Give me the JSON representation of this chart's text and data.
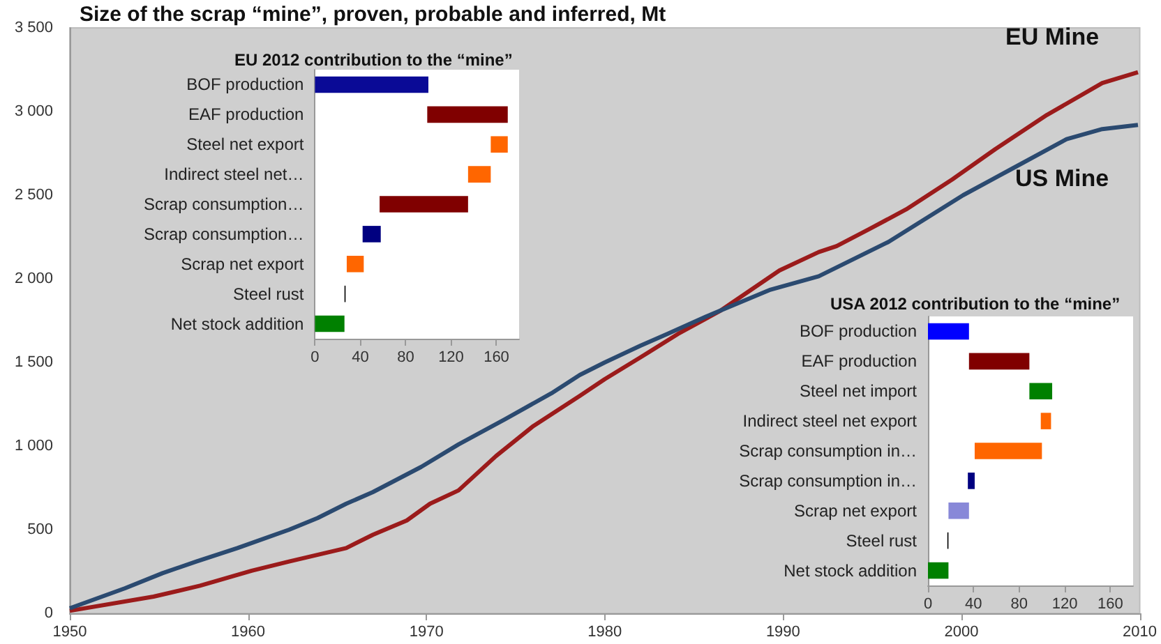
{
  "chart_data": [
    {
      "type": "line",
      "title": "Size of the scrap “mine”, proven, probable and inferred, Mt",
      "xlim": [
        1950,
        2010
      ],
      "xticks": [
        1950,
        1960,
        1970,
        1980,
        1990,
        2000,
        2010
      ],
      "ylim": [
        0,
        3500
      ],
      "yticks": [
        0,
        500,
        {
          "value": 1000,
          "label": "1 000"
        },
        {
          "value": 1500,
          "label": "1 500"
        },
        {
          "value": 2000,
          "label": "2 000"
        },
        {
          "value": 2500,
          "label": "2 500"
        },
        {
          "value": 3000,
          "label": "3 000"
        },
        {
          "value": 3500,
          "label": "3 500"
        }
      ],
      "legend": false,
      "marker": "none",
      "series": [
        {
          "name": "EU Mine",
          "color": "#9b1b1b",
          "x": [
            1950,
            1954.7,
            1957.3,
            1960.2,
            1962.3,
            1965.5,
            1967,
            1968.9,
            1970.2,
            1971.8,
            1973.9,
            1976,
            1978.6,
            1980,
            1982,
            1984.1,
            1986.5,
            1989.8,
            1992,
            1993,
            1994.8,
            1996.9,
            1999.5,
            2001.9,
            2004.8,
            2007.9,
            2009.9
          ],
          "values": [
            15,
            100,
            165,
            255,
            310,
            390,
            470,
            555,
            655,
            735,
            940,
            1120,
            1300,
            1400,
            1530,
            1670,
            1810,
            2050,
            2160,
            2195,
            2295,
            2415,
            2595,
            2775,
            2980,
            3170,
            3235
          ]
        },
        {
          "name": "US Mine",
          "color": "#2b4a70",
          "x": [
            1950,
            1953.1,
            1955.2,
            1957.1,
            1959.4,
            1962.3,
            1963.9,
            1965.5,
            1967,
            1969.7,
            1971.8,
            1974.4,
            1977,
            1978.6,
            1980,
            1982,
            1983.5,
            1985.7,
            1989.3,
            1992,
            1995.9,
            2000.1,
            2002.7,
            2005.9,
            2007.9,
            2009.9
          ],
          "values": [
            30,
            150,
            240,
            310,
            390,
            500,
            570,
            655,
            725,
            875,
            1010,
            1160,
            1315,
            1425,
            1500,
            1600,
            1670,
            1775,
            1935,
            2015,
            2220,
            2500,
            2650,
            2835,
            2895,
            2920
          ]
        }
      ]
    },
    {
      "type": "bar",
      "orientation": "horizontal",
      "title": "EU 2012 contribution to the “mine”",
      "categories": [
        "BOF production",
        "EAF production",
        "Steel net export",
        "Indirect steel net…",
        "Scrap consumption…",
        "Scrap consumption…",
        "Scrap net export",
        "Steel rust",
        "Net stock addition"
      ],
      "base": [
        0,
        99,
        155,
        135,
        57,
        42,
        28,
        26,
        0
      ],
      "values": [
        100,
        71,
        15,
        20,
        78,
        16,
        15,
        1,
        26
      ],
      "colors": [
        "#0a0a96",
        "#800000",
        "#ff6600",
        "#ff6600",
        "#800000",
        "#000080",
        "#ff6600",
        "#000000",
        "#008000"
      ],
      "xlim": [
        0,
        180
      ],
      "xticks": [
        0,
        40,
        80,
        120,
        160
      ]
    },
    {
      "type": "bar",
      "orientation": "horizontal",
      "title": "USA 2012 contribution to the “mine”",
      "categories": [
        "BOF production",
        "EAF production",
        "Steel net import",
        "Indirect steel net export",
        "Scrap consumption in…",
        "Scrap consumption in…",
        "Scrap net export",
        "Steel rust",
        "Net stock addition"
      ],
      "base": [
        0,
        36,
        89,
        99,
        41,
        35,
        18,
        17,
        0
      ],
      "values": [
        36,
        53,
        20,
        9,
        59,
        6,
        18,
        1,
        18
      ],
      "colors": [
        "#0000ff",
        "#800000",
        "#008000",
        "#ff6600",
        "#ff6600",
        "#000080",
        "#8888d8",
        "#000000",
        "#008000"
      ],
      "xlim": [
        0,
        180
      ],
      "xticks": [
        0,
        40,
        80,
        120,
        160
      ]
    }
  ]
}
